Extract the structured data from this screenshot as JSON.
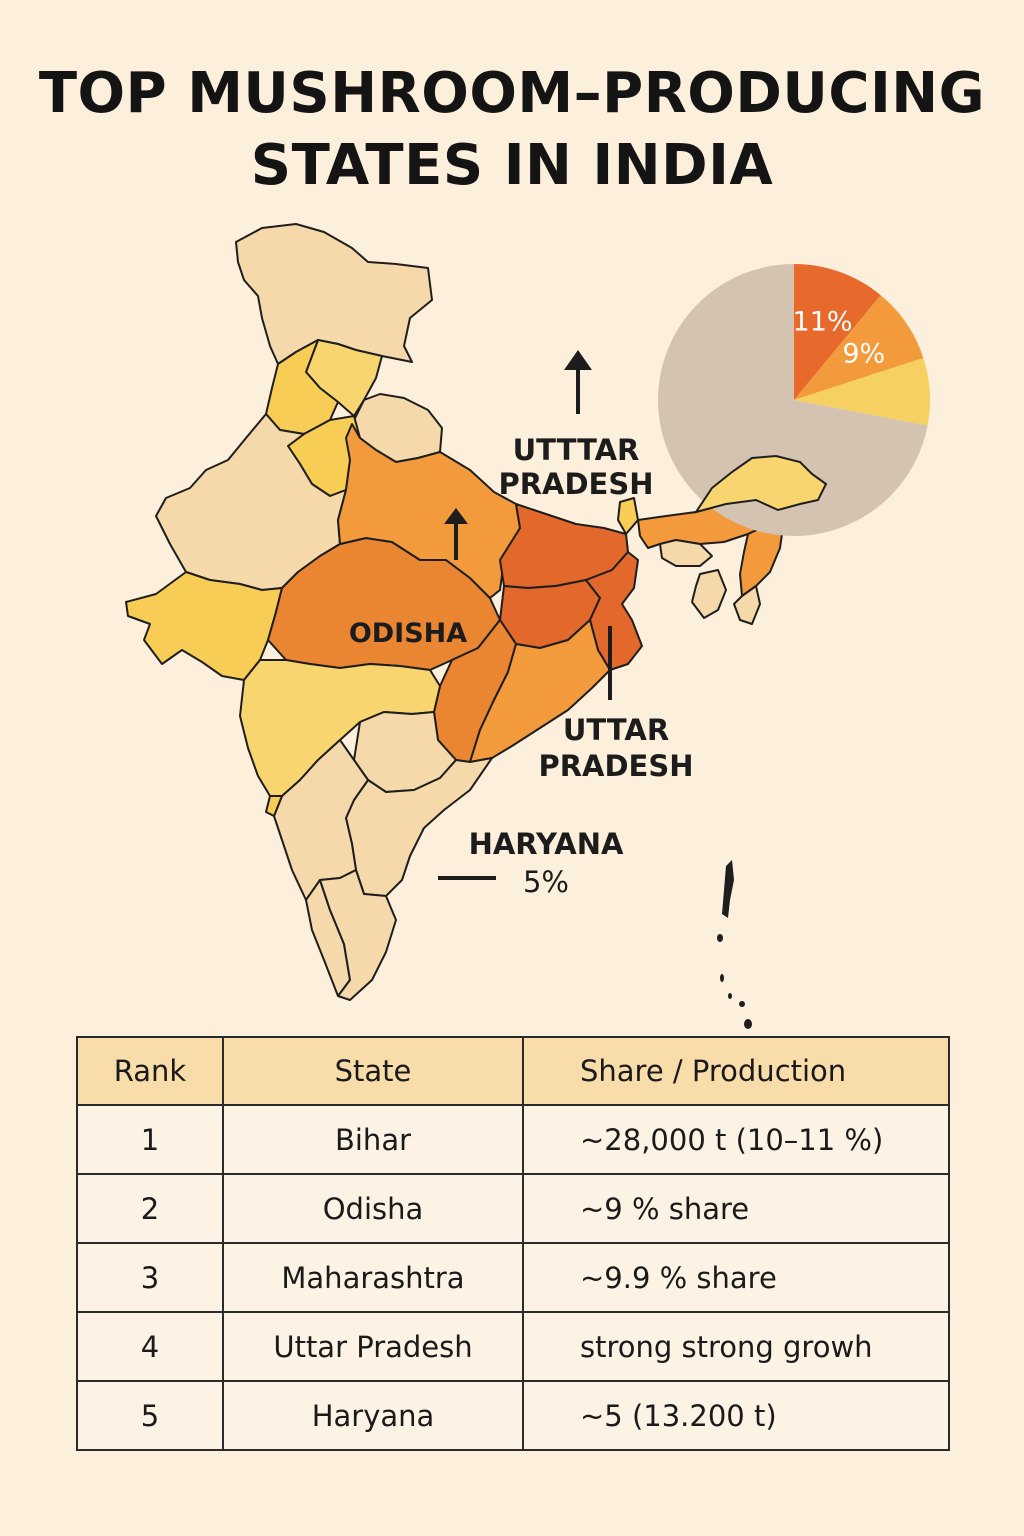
{
  "title": {
    "line1": "TOP MUSHROOM–PRODUCING",
    "line2": "STATES IN INDIA"
  },
  "map_labels": {
    "uttar_pradesh_top": [
      "UTTTAR",
      "PRADESH"
    ],
    "odisha": "ODISHA",
    "uttar_pradesh_bottom": [
      "UTTAR",
      "PRADESH"
    ],
    "haryana": [
      "HARYANA",
      "5%"
    ]
  },
  "chart_data": {
    "type": "pie",
    "slices": [
      {
        "label": "11%",
        "value": 11,
        "color": "#e8692c"
      },
      {
        "label": "9%",
        "value": 9,
        "color": "#f29a3c"
      },
      {
        "label": "",
        "value": 8,
        "color": "#f7d062"
      },
      {
        "label": "",
        "value": 72,
        "color": "#d4c3b1"
      }
    ]
  },
  "colors": {
    "background": "#fcf0dc",
    "light_tan": "#f5d9ab",
    "yellow": "#f8cd55",
    "light_orange": "#f29a3c",
    "orange": "#ea8532",
    "dark_orange": "#e2682b",
    "table_header": "#f8dcaa",
    "table_body": "#fdf3e4"
  },
  "table": {
    "headers": [
      "Rank",
      "State",
      "Share / Production"
    ],
    "rows": [
      {
        "rank": "1",
        "state": "Bihar",
        "share": "~28,000 t (10–11 %)"
      },
      {
        "rank": "2",
        "state": "Odisha",
        "share": "~9 % share"
      },
      {
        "rank": "3",
        "state": "Maharashtra",
        "share": "~9.9 % share"
      },
      {
        "rank": "4",
        "state": "Uttar Pradesh",
        "share": "strong strong growh"
      },
      {
        "rank": "5",
        "state": "Haryana",
        "share": "~5 (13.200 t)"
      }
    ]
  }
}
